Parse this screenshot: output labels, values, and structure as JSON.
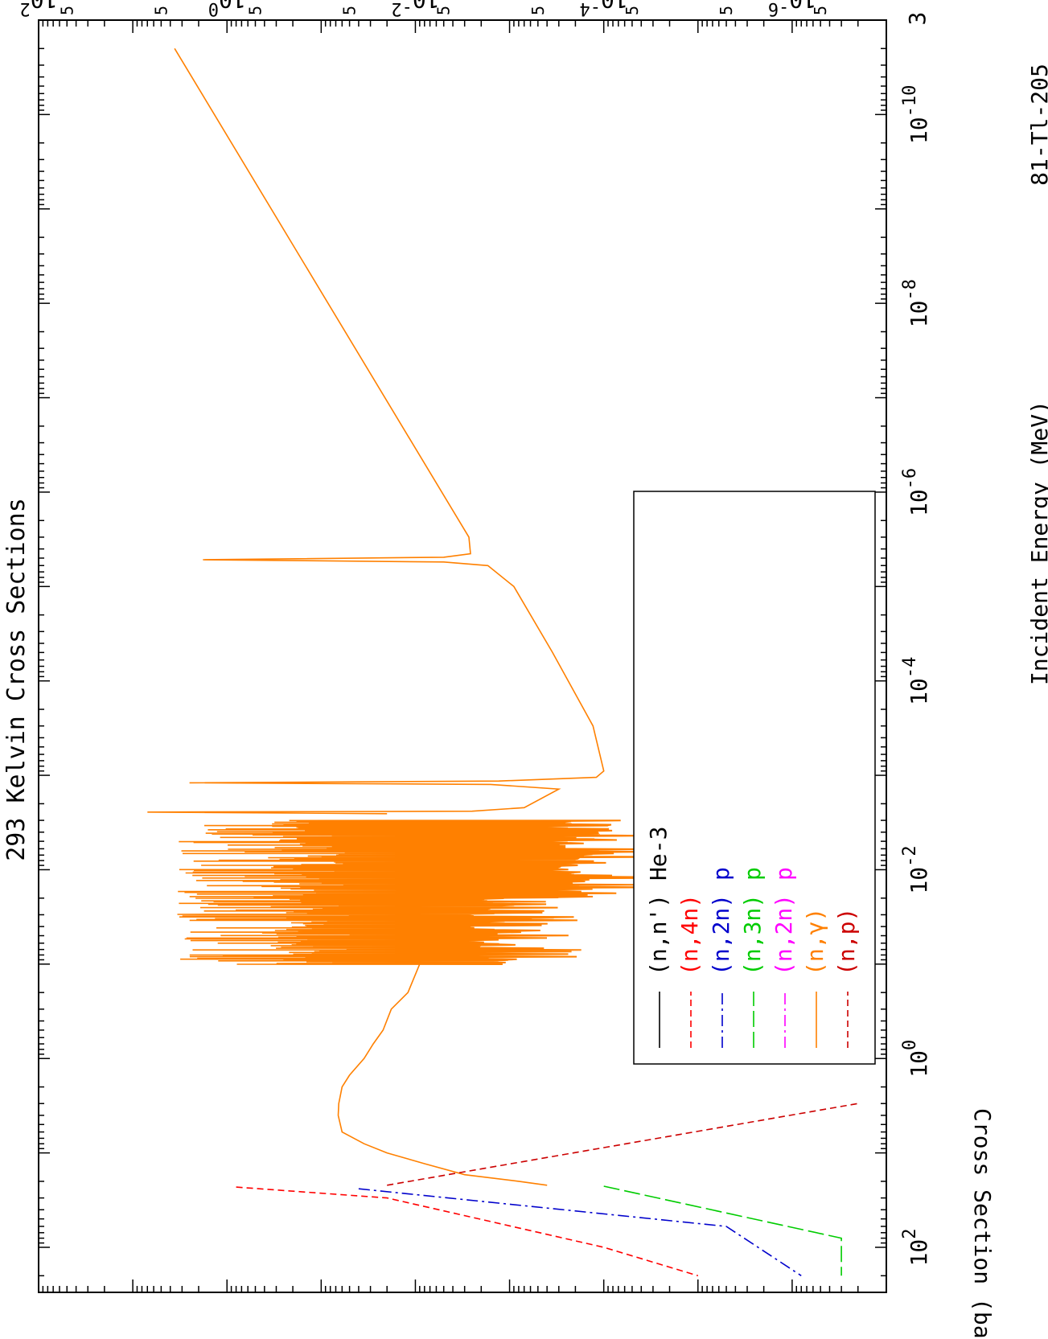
{
  "chart_data": {
    "type": "line",
    "title": "293 Kelvin Cross Sections",
    "xlabel": "Incident Energy (MeV)",
    "ylabel": "Cross Section (barns)",
    "isotope_label": "81-Tl-205",
    "x_scale": "log",
    "y_scale": "log",
    "xlim": [
      1e-11,
      300
    ],
    "ylim": [
      1e-07,
      100
    ],
    "grid": false,
    "legend_position": "bottom-left",
    "x_major_ticks": [
      {
        "value": 1e-10,
        "base": "10",
        "exp": "-10"
      },
      {
        "value": 1e-08,
        "base": "10",
        "exp": "-8"
      },
      {
        "value": 1e-06,
        "base": "10",
        "exp": "-6"
      },
      {
        "value": 0.0001,
        "base": "10",
        "exp": "-4"
      },
      {
        "value": 0.01,
        "base": "10",
        "exp": "-2"
      },
      {
        "value": 1,
        "base": "10",
        "exp": "0"
      },
      {
        "value": 100,
        "base": "10",
        "exp": "2"
      }
    ],
    "x_extra_label": "3",
    "y_major_ticks": [
      {
        "value": 100,
        "base": "10",
        "exp": "2"
      },
      {
        "value": 1,
        "base": "10",
        "exp": "0"
      },
      {
        "value": 0.01,
        "base": "10",
        "exp": "-2"
      },
      {
        "value": 0.0001,
        "base": "10",
        "exp": "-4"
      },
      {
        "value": 1e-06,
        "base": "10",
        "exp": "-6"
      }
    ],
    "y_minor_label": "5",
    "legend": [
      {
        "label": "(n,n') He-3",
        "color": "#000000",
        "dash": "solid"
      },
      {
        "label": "(n,4n)",
        "color": "#ff0000",
        "dash": "dashed"
      },
      {
        "label": "(n,2n) p",
        "color": "#0000cc",
        "dash": "dashdot"
      },
      {
        "label": "(n,3n) p",
        "color": "#00cc00",
        "dash": "longdash"
      },
      {
        "label": "(n,2n) p",
        "color": "#ff00ff",
        "dash": "dashdot"
      },
      {
        "label": "(n,γ)",
        "color": "#ff8000",
        "dash": "solid"
      },
      {
        "label": "(n,p)",
        "color": "#cc0000",
        "dash": "dashed"
      }
    ],
    "series": [
      {
        "name": "(n,γ)",
        "color": "#ff8000",
        "points": [
          [
            2e-11,
            3.6
          ],
          [
            3e-06,
            0.0027
          ],
          [
            4.5e-06,
            0.0026
          ],
          [
            4.9e-06,
            0.005
          ],
          [
            5.2e-06,
            1.8
          ],
          [
            5.5e-06,
            0.005
          ],
          [
            6e-06,
            0.0017
          ],
          [
            1e-05,
            0.0009
          ],
          [
            5e-05,
            0.00035
          ],
          [
            0.0003,
            0.00013
          ],
          [
            0.0009,
            0.0001
          ],
          [
            0.00105,
            0.00012
          ],
          [
            0.00115,
            0.0013
          ],
          [
            0.0012,
            2.5
          ],
          [
            0.00125,
            0.0016
          ],
          [
            0.0014,
            0.0003
          ],
          [
            0.0022,
            0.0007
          ],
          [
            0.0024,
            0.0025
          ],
          [
            0.00245,
            7.0
          ],
          [
            0.00255,
            0.02
          ]
        ],
        "resonance_region": {
          "x_start": 0.003,
          "x_end": 0.1,
          "y_min": 5e-05,
          "y_max": 3.5
        },
        "smooth_tail": [
          [
            0.1,
            0.009
          ],
          [
            0.2,
            0.012
          ],
          [
            0.3,
            0.018
          ],
          [
            0.5,
            0.022
          ],
          [
            0.7,
            0.028
          ],
          [
            1.0,
            0.035
          ],
          [
            1.5,
            0.05
          ],
          [
            2.0,
            0.06
          ],
          [
            3.0,
            0.065
          ],
          [
            4.0,
            0.066
          ],
          [
            6.0,
            0.06
          ],
          [
            8.0,
            0.035
          ],
          [
            10.0,
            0.02
          ],
          [
            13.0,
            0.008
          ],
          [
            17.0,
            0.003
          ],
          [
            20.0,
            0.0008
          ],
          [
            22.0,
            0.0004
          ]
        ]
      },
      {
        "name": "(n,4n)",
        "color": "#ff0000",
        "points": [
          [
            23,
            0.8
          ],
          [
            30,
            0.02
          ],
          [
            100,
            0.0001
          ],
          [
            200,
            1e-05
          ]
        ]
      },
      {
        "name": "(n,2n) p",
        "color": "#0000cc",
        "points": [
          [
            24,
            0.04
          ],
          [
            60,
            5e-06
          ],
          [
            200,
            8e-07
          ]
        ]
      },
      {
        "name": "(n,3n) p",
        "color": "#00cc00",
        "points": [
          [
            22.5,
            0.0001
          ],
          [
            80,
            3e-07
          ],
          [
            200,
            3e-07
          ]
        ]
      },
      {
        "name": "(n,p)",
        "color": "#cc0000",
        "points": [
          [
            22,
            0.02
          ],
          [
            3,
            2e-07
          ]
        ]
      }
    ]
  }
}
